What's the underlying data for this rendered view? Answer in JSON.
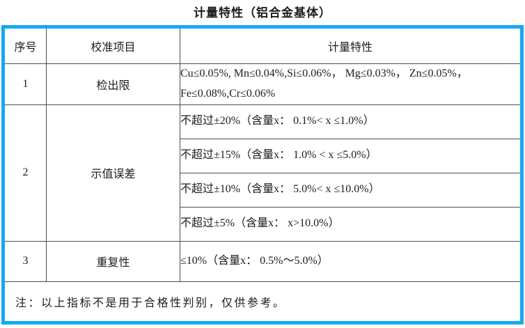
{
  "title": "计量特性（铝合金基体）",
  "colors": {
    "table_border": "#15a8f0",
    "grid_line": "#4d4d4d",
    "text": "#1c1c1c",
    "background": "#ffffff"
  },
  "table": {
    "headers": [
      "序号",
      "校准项目",
      "计量特性"
    ],
    "rows": [
      {
        "no": "1",
        "item": "检出限",
        "specs": [
          "Cu≤0.05%, Mn≤0.04%,Si≤0.06%， Mg≤0.03%， Zn≤0.05%， Fe≤0.08%,Cr≤0.06%"
        ]
      },
      {
        "no": "2",
        "item": "示值误差",
        "specs": [
          "不超过±20%（含量x： 0.1%< x ≤1.0%）",
          "不超过±15%（含量x： 1.0% < x ≤5.0%）",
          "不超过±10%（含量x： 5.0%< x ≤10.0%）",
          "不超过±5%（含量x： x>10.0%）"
        ]
      },
      {
        "no": "3",
        "item": "重复性",
        "specs": [
          "≤10%（含量x： 0.5%～5.0%）"
        ]
      }
    ],
    "note": "注：以上指标不是用于合格性判别，仅供参考。"
  }
}
